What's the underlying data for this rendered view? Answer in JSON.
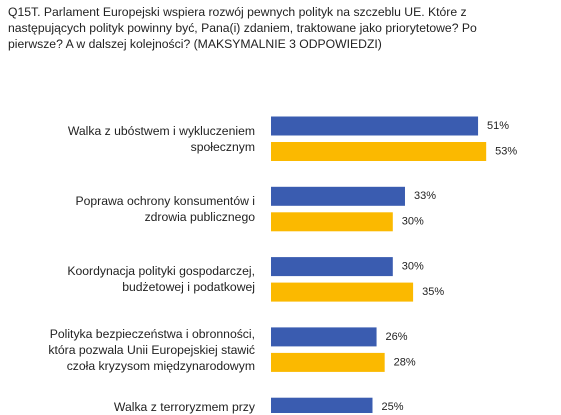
{
  "chart_data": {
    "type": "hbar",
    "title": "Q15T. Parlament Europejski wspiera rozwój pewnych polityk na szczeblu UE. Które z\nnastępujących polityk powinny być, Pana(i) zdaniem, traktowane jako priorytetowe? Po\npierwsze? A w dalszej kolejności? (MAKSYMALNIE 3 ODPOWIEDZI)",
    "categories": [
      "Walka z ubóstwem i wykluczeniem\nspołecznym",
      "Poprawa ochrony konsumentów i\nzdrowia publicznego",
      "Koordynacja polityki gospodarczej,\nbudżetowej i podatkowej",
      "Polityka bezpieczeństwa i obronności,\nktóra pozwala Unii Europejskiej stawić\nczoła kryzysom międzynarodowym",
      "Walka z terroryzmem przy"
    ],
    "series": [
      {
        "color": "#3a5cb0",
        "values": [
          51,
          33,
          30,
          26,
          25
        ],
        "value_labels": [
          "51%",
          "33%",
          "30%",
          "26%",
          "25%"
        ]
      },
      {
        "color": "#fbb900",
        "values": [
          53,
          30,
          35,
          28,
          null
        ],
        "value_labels": [
          "53%",
          "30%",
          "35%",
          "28%",
          null
        ]
      }
    ]
  }
}
